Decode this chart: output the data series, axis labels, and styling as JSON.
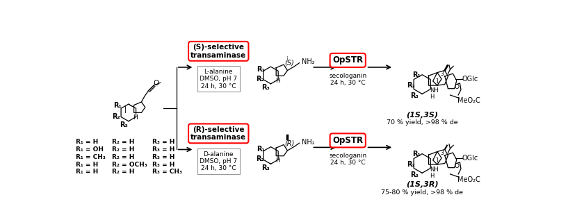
{
  "background": "#ffffff",
  "fig_width": 8.4,
  "fig_height": 3.07,
  "dpi": 100,
  "s_box_label": "(S)-selective\ntransaminase",
  "r_box_label": "(R)-selective\ntransaminase",
  "s_opstr_label": "OpSTR",
  "r_opstr_label": "OpSTR",
  "s_conditions_top": "L-alanine\nDMSO, pH 7\n24 h, 30 °C",
  "r_conditions_top": "D-alanine\nDMSO, pH 7\n24 h, 30 °C",
  "s_conditions_bottom": "secologanin\n24 h, 30 °C",
  "r_conditions_bottom": "secologanin\n24 h, 30 °C",
  "s_product_label": "(1S,3S)",
  "r_product_label": "(1S,3R)",
  "s_yield": "70 % yield, >98 % de",
  "r_yield": "75-80 % yield, >98 % de",
  "s_stereo": "(S)",
  "r_stereo": "(R)",
  "r_groups_col1": [
    "R₁ = H",
    "R₁ = OH",
    "R₁ = CH₃",
    "R₁ = H",
    "R₁ = H"
  ],
  "r_groups_col2": [
    "R₂ = H",
    "R₂ = H",
    "R₂ = H",
    "R₂ = OCH₃",
    "R₂ = H"
  ],
  "r_groups_col3": [
    "R₃ = H",
    "R₃ = H",
    "R₃ = H",
    "R₃ = H",
    "R₃ = CH₃"
  ]
}
